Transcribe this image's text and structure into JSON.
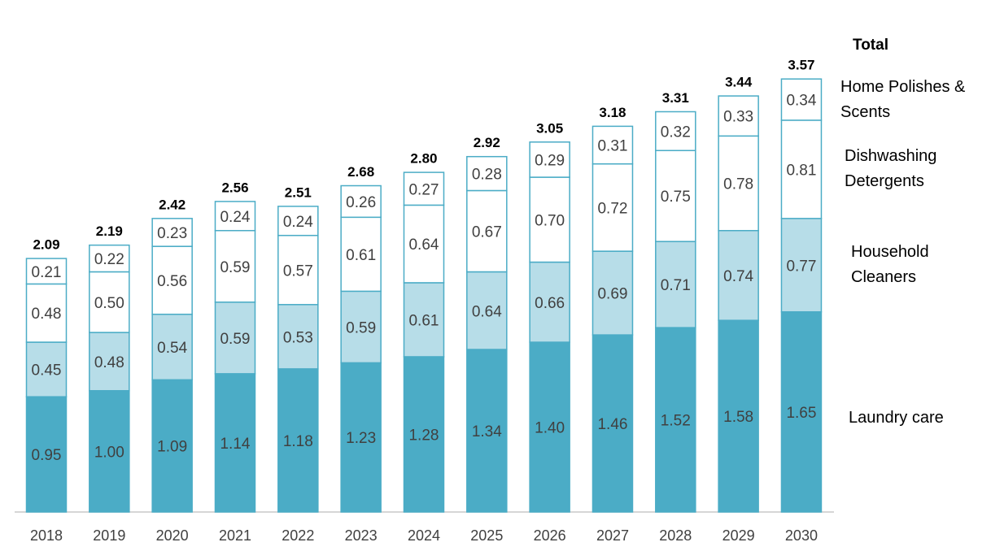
{
  "chart_data": {
    "type": "stacked_bar",
    "categories": [
      "2018",
      "2019",
      "2020",
      "2021",
      "2022",
      "2023",
      "2024",
      "2025",
      "2026",
      "2027",
      "2028",
      "2029",
      "2030"
    ],
    "series": [
      {
        "name": "Laundry care",
        "color": "#4bacc6",
        "values": [
          0.95,
          1.0,
          1.09,
          1.14,
          1.18,
          1.23,
          1.28,
          1.34,
          1.4,
          1.46,
          1.52,
          1.58,
          1.65
        ],
        "value_labels": [
          "0.95",
          "1.00",
          "1.09",
          "1.14",
          "1.18",
          "1.23",
          "1.28",
          "1.34",
          "1.40",
          "1.46",
          "1.52",
          "1.58",
          "1.65"
        ]
      },
      {
        "name": "Household Cleaners",
        "color": "#b7dde8",
        "values": [
          0.45,
          0.48,
          0.54,
          0.59,
          0.53,
          0.59,
          0.61,
          0.64,
          0.66,
          0.69,
          0.71,
          0.74,
          0.77
        ],
        "value_labels": [
          "0.45",
          "0.48",
          "0.54",
          "0.59",
          "0.53",
          "0.59",
          "0.61",
          "0.64",
          "0.66",
          "0.69",
          "0.71",
          "0.74",
          "0.77"
        ]
      },
      {
        "name": "Dishwashing Detergents",
        "color": "#ffffff",
        "values": [
          0.48,
          0.5,
          0.56,
          0.59,
          0.57,
          0.61,
          0.64,
          0.67,
          0.7,
          0.72,
          0.75,
          0.78,
          0.81
        ],
        "value_labels": [
          "0.48",
          "0.50",
          "0.56",
          "0.59",
          "0.57",
          "0.61",
          "0.64",
          "0.67",
          "0.70",
          "0.72",
          "0.75",
          "0.78",
          "0.81"
        ]
      },
      {
        "name": "Home Polishes & Scents",
        "color": "#ffffff",
        "values": [
          0.21,
          0.22,
          0.23,
          0.24,
          0.24,
          0.26,
          0.27,
          0.28,
          0.29,
          0.31,
          0.32,
          0.33,
          0.34
        ],
        "value_labels": [
          "0.21",
          "0.22",
          "0.23",
          "0.24",
          "0.24",
          "0.26",
          "0.27",
          "0.28",
          "0.29",
          "0.31",
          "0.32",
          "0.33",
          "0.34"
        ]
      }
    ],
    "totals": {
      "name": "Total",
      "values": [
        2.09,
        2.19,
        2.42,
        2.56,
        2.51,
        2.68,
        2.8,
        2.92,
        3.05,
        3.18,
        3.31,
        3.44,
        3.57
      ],
      "value_labels": [
        "2.09",
        "2.19",
        "2.42",
        "2.56",
        "2.51",
        "2.68",
        "2.80",
        "2.92",
        "3.05",
        "3.18",
        "3.31",
        "3.44",
        "3.57"
      ]
    },
    "outline_color": "#4bacc6",
    "ylim": [
      0,
      4
    ]
  }
}
